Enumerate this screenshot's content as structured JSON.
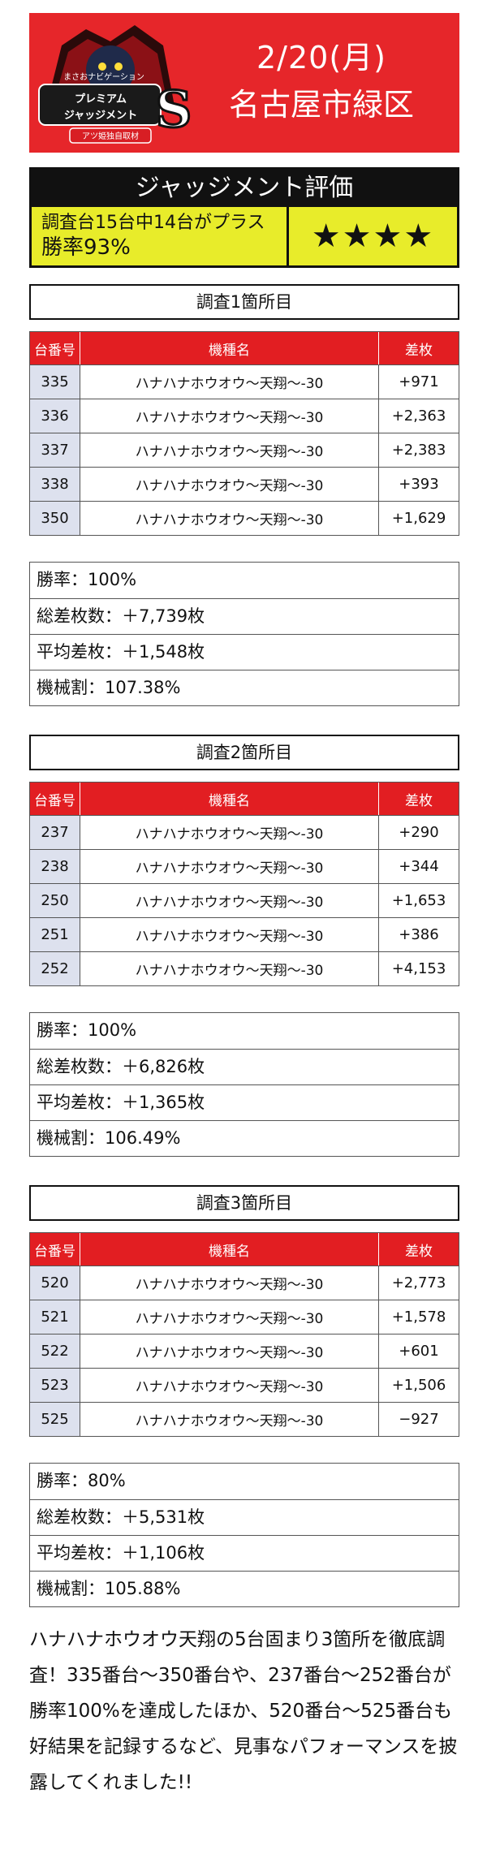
{
  "header": {
    "logo_top_text": "まさおナビゲーション",
    "logo_main_text": "プレミアム ジャッジメント",
    "logo_badge": "S",
    "logo_sub_text": "アツ姫独自取材",
    "date": "2/20(月)",
    "area": "名古屋市緑区",
    "bg_color": "#e6262a"
  },
  "evaluation": {
    "title": "ジャッジメント評価",
    "detail_line1": "調査台15台中14台がプラス",
    "detail_line2": "勝率93%",
    "stars": "★★★★",
    "accent_color": "#e8ec2a"
  },
  "table_headers": {
    "machine_number": "台番号",
    "machine_name": "機種名",
    "difference": "差枚"
  },
  "sections": [
    {
      "title": "調査1箇所目",
      "rows": [
        {
          "no": "335",
          "name": "ハナハナホウオウ〜天翔〜-30",
          "diff": "+971"
        },
        {
          "no": "336",
          "name": "ハナハナホウオウ〜天翔〜-30",
          "diff": "+2,363"
        },
        {
          "no": "337",
          "name": "ハナハナホウオウ〜天翔〜-30",
          "diff": "+2,383"
        },
        {
          "no": "338",
          "name": "ハナハナホウオウ〜天翔〜-30",
          "diff": "+393"
        },
        {
          "no": "350",
          "name": "ハナハナホウオウ〜天翔〜-30",
          "diff": "+1,629"
        }
      ],
      "stats": {
        "win_rate": "勝率：100%",
        "total_diff": "総差枚数：＋7,739枚",
        "avg_diff": "平均差枚：＋1,548枚",
        "machine_rate": "機械割：107.38%"
      }
    },
    {
      "title": "調査2箇所目",
      "rows": [
        {
          "no": "237",
          "name": "ハナハナホウオウ〜天翔〜-30",
          "diff": "+290"
        },
        {
          "no": "238",
          "name": "ハナハナホウオウ〜天翔〜-30",
          "diff": "+344"
        },
        {
          "no": "250",
          "name": "ハナハナホウオウ〜天翔〜-30",
          "diff": "+1,653"
        },
        {
          "no": "251",
          "name": "ハナハナホウオウ〜天翔〜-30",
          "diff": "+386"
        },
        {
          "no": "252",
          "name": "ハナハナホウオウ〜天翔〜-30",
          "diff": "+4,153"
        }
      ],
      "stats": {
        "win_rate": "勝率：100%",
        "total_diff": "総差枚数：＋6,826枚",
        "avg_diff": "平均差枚：＋1,365枚",
        "machine_rate": "機械割：106.49%"
      }
    },
    {
      "title": "調査3箇所目",
      "rows": [
        {
          "no": "520",
          "name": "ハナハナホウオウ〜天翔〜-30",
          "diff": "+2,773"
        },
        {
          "no": "521",
          "name": "ハナハナホウオウ〜天翔〜-30",
          "diff": "+1,578"
        },
        {
          "no": "522",
          "name": "ハナハナホウオウ〜天翔〜-30",
          "diff": "+601"
        },
        {
          "no": "523",
          "name": "ハナハナホウオウ〜天翔〜-30",
          "diff": "+1,506"
        },
        {
          "no": "525",
          "name": "ハナハナホウオウ〜天翔〜-30",
          "diff": "−927"
        }
      ],
      "stats": {
        "win_rate": "勝率：80%",
        "total_diff": "総差枚数：＋5,531枚",
        "avg_diff": "平均差枚：＋1,106枚",
        "machine_rate": "機械割：105.88%"
      }
    }
  ],
  "summary": "ハナハナホウオウ天翔の5台固まり3箇所を徹底調査！335番台〜350番台や、237番台〜252番台が勝率100%を達成したほか、520番台〜525番台も好結果を記録するなど、見事なパフォーマンスを披露してくれました!!"
}
